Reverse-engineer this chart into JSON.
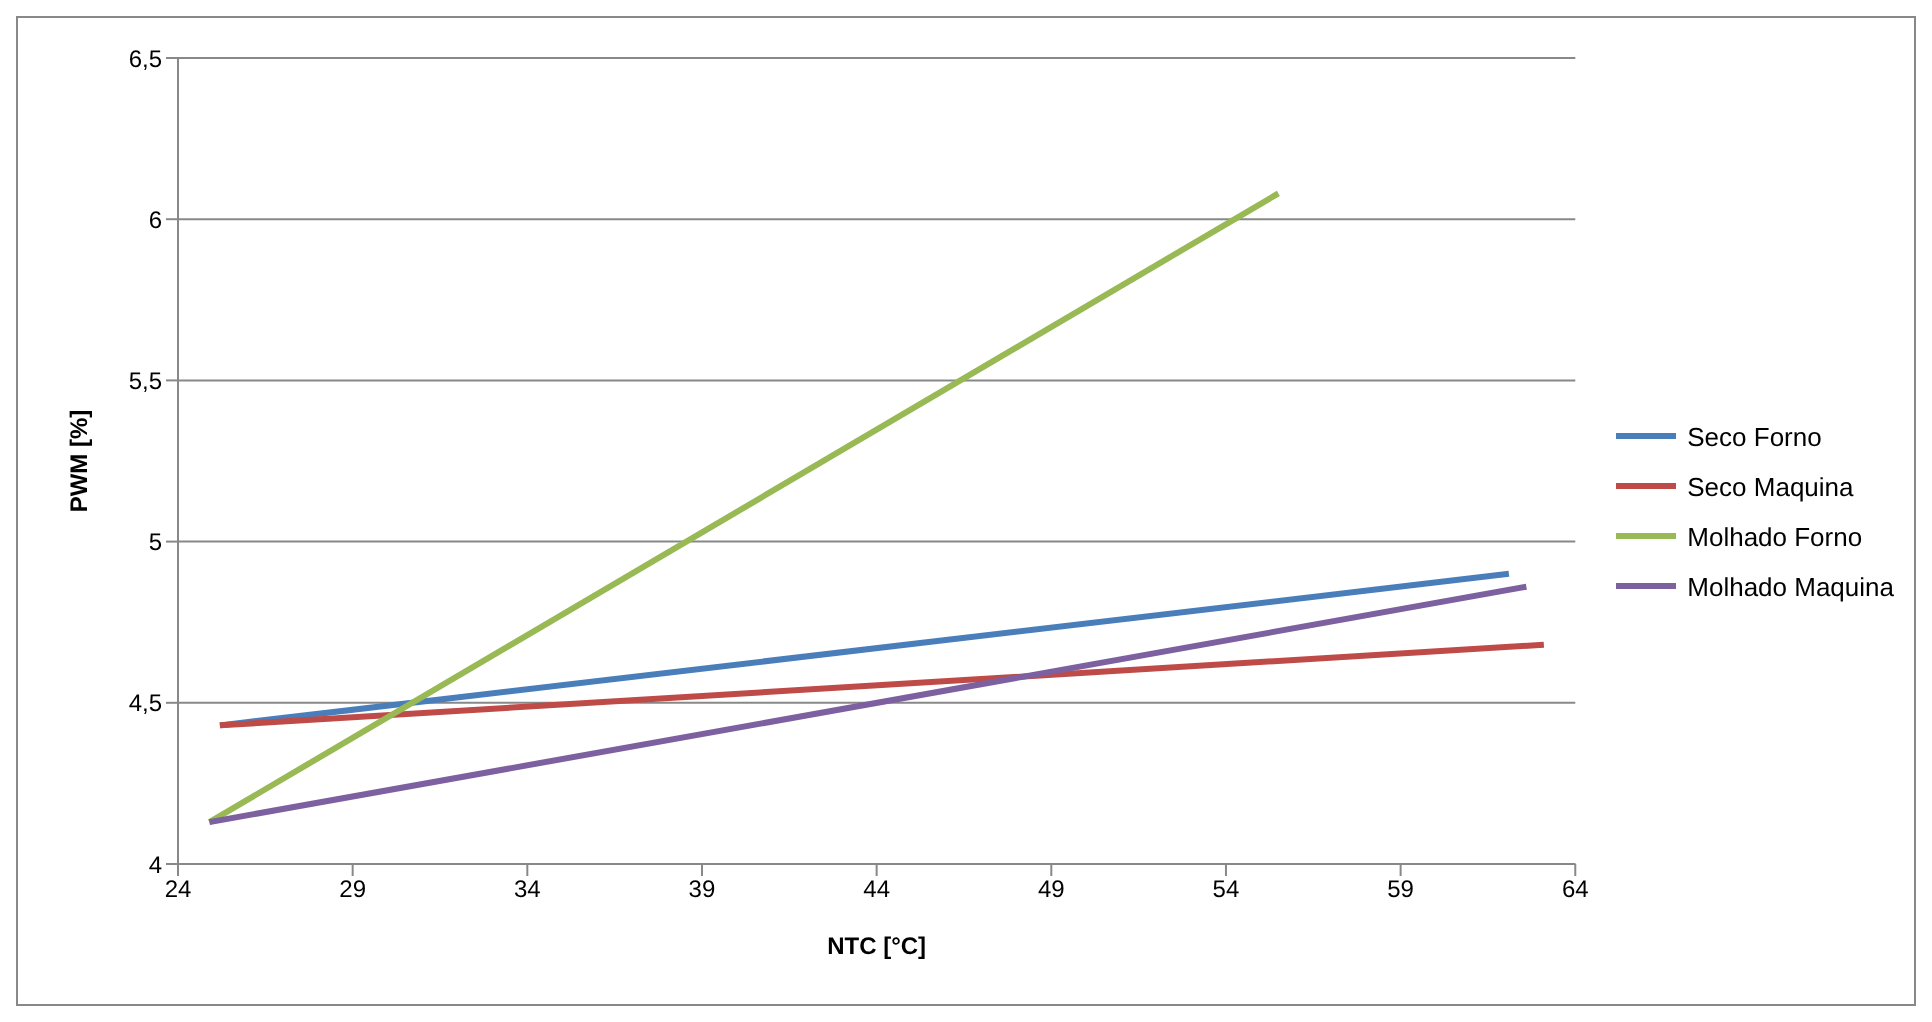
{
  "chart_data": {
    "type": "line",
    "xlabel": "NTC [°C]",
    "ylabel": "PWM [%]",
    "xlim": [
      24,
      64
    ],
    "xticks": [
      24,
      29,
      34,
      39,
      44,
      49,
      54,
      59,
      64
    ],
    "ylim": [
      4,
      6.5
    ],
    "yticks": [
      4,
      {
        "value": 4.5,
        "label": "4,5"
      },
      5,
      {
        "value": 5.5,
        "label": "5,5"
      },
      6,
      {
        "value": 6.5,
        "label": "6,5"
      }
    ],
    "grid": "y",
    "legend": "right",
    "marker": "none",
    "line_style": "solid",
    "series": [
      {
        "name": "Seco Forno",
        "color": "#4a7ebb",
        "x": [
          25.2,
          62.1
        ],
        "values": [
          4.43,
          4.9
        ]
      },
      {
        "name": "Seco Maquina",
        "color": "#be4b48",
        "x": [
          25.2,
          63.1
        ],
        "values": [
          4.43,
          4.68
        ]
      },
      {
        "name": "Molhado Forno",
        "color": "#98b954",
        "x": [
          24.9,
          55.5
        ],
        "values": [
          4.13,
          6.08
        ]
      },
      {
        "name": "Molhado Maquina",
        "color": "#7d60a0",
        "x": [
          24.9,
          62.6
        ],
        "values": [
          4.13,
          4.86
        ]
      }
    ]
  }
}
